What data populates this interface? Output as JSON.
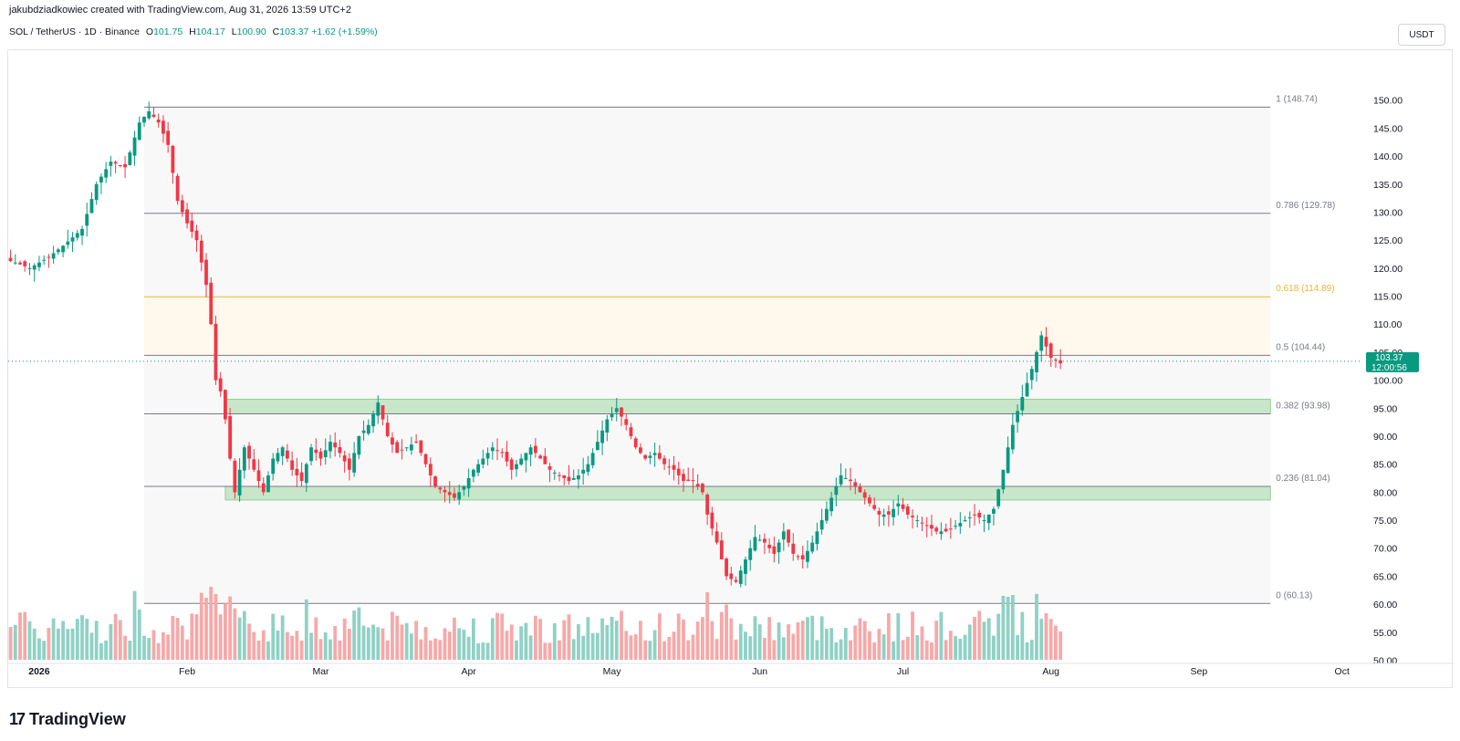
{
  "header": {
    "credit": "jakubdziadkowiec created with TradingView.com, Aug 31, 2026 13:59 UTC+2",
    "symbol": "SOL / TetherUS · 1D · Binance",
    "open_label": "O",
    "open": "101.75",
    "high_label": "H",
    "high": "104.17",
    "low_label": "L",
    "low": "100.90",
    "close_label": "C",
    "close": "103.37",
    "change": "+1.62 (+1.59%)",
    "currency": "USDT"
  },
  "footer": {
    "brand": "TradingView",
    "logo": "17"
  },
  "colors": {
    "up": "#089981",
    "down": "#f23645",
    "vol_up": "#8fd1c5",
    "vol_down": "#f7a8a8",
    "zone_green": "#c8e6c9",
    "golden": "#f0b429"
  },
  "chart_data": {
    "type": "candlestick",
    "symbol": "SOL/USDT",
    "interval": "1D",
    "ylim": [
      46,
      155
    ],
    "y_ticks": [
      "150.00",
      "145.00",
      "140.00",
      "135.00",
      "130.00",
      "125.00",
      "120.00",
      "115.00",
      "110.00",
      "105.00",
      "100.00",
      "95.00",
      "90.00",
      "85.00",
      "80.00",
      "75.00",
      "70.00",
      "65.00",
      "60.00",
      "55.00",
      "50.00"
    ],
    "x_ticks": [
      {
        "label": "2026",
        "day": -22
      },
      {
        "label": "Feb",
        "day": 9
      },
      {
        "label": "Mar",
        "day": 37
      },
      {
        "label": "Apr",
        "day": 68
      },
      {
        "label": "May",
        "day": 98
      },
      {
        "label": "Jun",
        "day": 129
      },
      {
        "label": "Jul",
        "day": 159
      },
      {
        "label": "Aug",
        "day": 190
      },
      {
        "label": "Sep",
        "day": 221
      },
      {
        "label": "Oct",
        "day": 251
      }
    ],
    "last_price": "103.37",
    "countdown": "12:00:56",
    "fib_levels": [
      {
        "ratio": "1",
        "value": 148.74,
        "label": "1 (148.74)"
      },
      {
        "ratio": "0.786",
        "value": 129.78,
        "label": "0.786 (129.78)"
      },
      {
        "ratio": "0.618",
        "value": 114.89,
        "label": "0.618 (114.89)"
      },
      {
        "ratio": "0.5",
        "value": 104.44,
        "label": "0.5 (104.44)"
      },
      {
        "ratio": "0.382",
        "value": 93.98,
        "label": "0.382 (93.98)"
      },
      {
        "ratio": "0.236",
        "value": 81.04,
        "label": "0.236 (81.04)"
      },
      {
        "ratio": "0",
        "value": 60.13,
        "label": "0 (60.13)"
      }
    ],
    "zones": [
      {
        "low": 93.98,
        "high": 96.6
      },
      {
        "low": 78.6,
        "high": 81.04
      }
    ],
    "anchors": [
      [
        -31,
        122
      ],
      [
        -27,
        121
      ],
      [
        -24,
        120
      ],
      [
        -20,
        122
      ],
      [
        -17,
        124
      ],
      [
        -13,
        127
      ],
      [
        -10,
        135
      ],
      [
        -7,
        139
      ],
      [
        -4,
        138
      ],
      [
        -1,
        146
      ],
      [
        1,
        148
      ],
      [
        3,
        146
      ],
      [
        5,
        142
      ],
      [
        7,
        132
      ],
      [
        9,
        128
      ],
      [
        11,
        125
      ],
      [
        12,
        121
      ],
      [
        13,
        117
      ],
      [
        14,
        110
      ],
      [
        15,
        100
      ],
      [
        16,
        98
      ],
      [
        17,
        93
      ],
      [
        18,
        86
      ],
      [
        19,
        80
      ],
      [
        21,
        88
      ],
      [
        23,
        84
      ],
      [
        25,
        80
      ],
      [
        27,
        86
      ],
      [
        29,
        88
      ],
      [
        31,
        84
      ],
      [
        33,
        82
      ],
      [
        35,
        88
      ],
      [
        37,
        86
      ],
      [
        39,
        89
      ],
      [
        41,
        87
      ],
      [
        43,
        84
      ],
      [
        45,
        90
      ],
      [
        47,
        92
      ],
      [
        49,
        96
      ],
      [
        51,
        90
      ],
      [
        53,
        87
      ],
      [
        55,
        88
      ],
      [
        57,
        89
      ],
      [
        59,
        85
      ],
      [
        61,
        81
      ],
      [
        63,
        80
      ],
      [
        65,
        79
      ],
      [
        67,
        81
      ],
      [
        69,
        84
      ],
      [
        71,
        86
      ],
      [
        73,
        88
      ],
      [
        75,
        87
      ],
      [
        77,
        84
      ],
      [
        79,
        86
      ],
      [
        81,
        88
      ],
      [
        83,
        86
      ],
      [
        85,
        84
      ],
      [
        87,
        83
      ],
      [
        89,
        82
      ],
      [
        91,
        83
      ],
      [
        93,
        85
      ],
      [
        95,
        89
      ],
      [
        97,
        93
      ],
      [
        99,
        95
      ],
      [
        101,
        92
      ],
      [
        103,
        88
      ],
      [
        105,
        86
      ],
      [
        107,
        87
      ],
      [
        109,
        85
      ],
      [
        111,
        84
      ],
      [
        113,
        82
      ],
      [
        115,
        82
      ],
      [
        117,
        80
      ],
      [
        118,
        76
      ],
      [
        120,
        71
      ],
      [
        122,
        65
      ],
      [
        124,
        64
      ],
      [
        126,
        68
      ],
      [
        128,
        72
      ],
      [
        130,
        71
      ],
      [
        132,
        69
      ],
      [
        134,
        73
      ],
      [
        136,
        69
      ],
      [
        138,
        68
      ],
      [
        140,
        71
      ],
      [
        142,
        75
      ],
      [
        144,
        79
      ],
      [
        146,
        83
      ],
      [
        148,
        82
      ],
      [
        150,
        80
      ],
      [
        152,
        78
      ],
      [
        154,
        76
      ],
      [
        156,
        76
      ],
      [
        158,
        78
      ],
      [
        160,
        76
      ],
      [
        162,
        75
      ],
      [
        164,
        74
      ],
      [
        166,
        73
      ],
      [
        168,
        73
      ],
      [
        170,
        74
      ],
      [
        172,
        75
      ],
      [
        174,
        76
      ],
      [
        176,
        75
      ],
      [
        178,
        77
      ],
      [
        180,
        84
      ],
      [
        182,
        92
      ],
      [
        184,
        97
      ],
      [
        186,
        102
      ],
      [
        188,
        108
      ],
      [
        190,
        104
      ],
      [
        192,
        103
      ]
    ],
    "candles": [],
    "volume_ylim": [
      0,
      10
    ]
  }
}
